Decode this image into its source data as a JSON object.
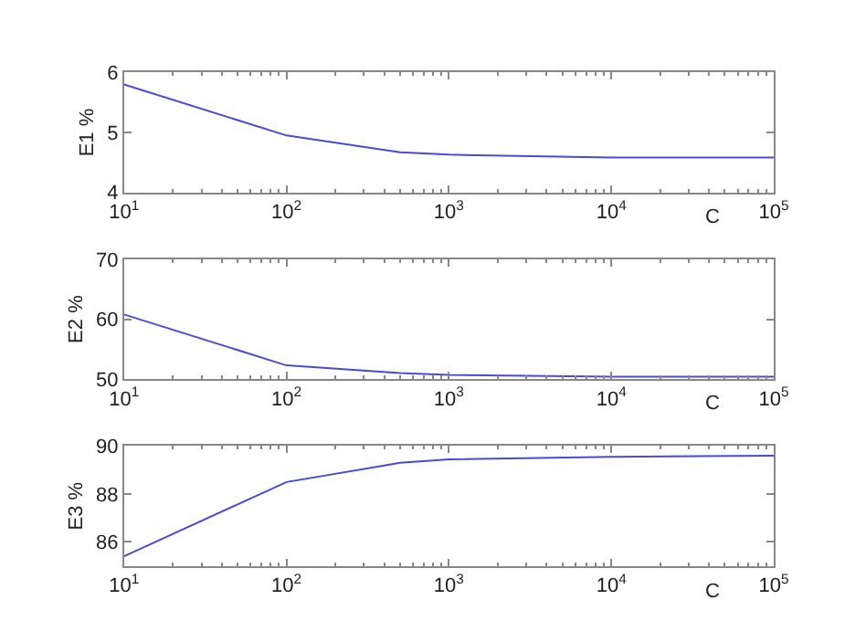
{
  "chart_data": [
    {
      "type": "line",
      "xlabel": "C",
      "ylabel": "E1 %",
      "log": "x",
      "marker": "none",
      "line_style": "solid",
      "x": [
        10,
        100,
        500,
        1000,
        10000,
        100000
      ],
      "series": [
        {
          "color": "#4a4ad8",
          "values": [
            5.8,
            4.95,
            4.67,
            4.63,
            4.58,
            4.58
          ]
        }
      ],
      "xlim": [
        10,
        100000
      ],
      "xticks": [
        {
          "value": 10,
          "label": "10$^{1}$"
        },
        {
          "value": 100,
          "label": "10$^{2}$"
        },
        {
          "value": 1000,
          "label": "10$^{3}$"
        },
        {
          "value": 10000,
          "label": "10$^{4}$"
        },
        {
          "value": 100000,
          "label": "10$^{5}$"
        }
      ],
      "ylim": [
        4,
        6
      ],
      "yticks": [
        4,
        5,
        6
      ]
    },
    {
      "type": "line",
      "xlabel": "C",
      "ylabel": "E2 %",
      "log": "x",
      "marker": "none",
      "line_style": "solid",
      "x": [
        10,
        100,
        500,
        1000,
        10000,
        100000
      ],
      "series": [
        {
          "color": "#4a4ad8",
          "values": [
            60.8,
            52.3,
            51.0,
            50.7,
            50.4,
            50.4
          ]
        }
      ],
      "xlim": [
        10,
        100000
      ],
      "xticks": [
        {
          "value": 10,
          "label": "10$^{1}$"
        },
        {
          "value": 100,
          "label": "10$^{2}$"
        },
        {
          "value": 1000,
          "label": "10$^{3}$"
        },
        {
          "value": 10000,
          "label": "10$^{4}$"
        },
        {
          "value": 100000,
          "label": "10$^{5}$"
        }
      ],
      "ylim": [
        50,
        70
      ],
      "yticks": [
        50,
        60,
        70
      ]
    },
    {
      "type": "line",
      "xlabel": "C",
      "ylabel": "E3 %",
      "log": "x",
      "marker": "none",
      "line_style": "solid",
      "x": [
        10,
        100,
        500,
        1000,
        10000,
        100000
      ],
      "series": [
        {
          "color": "#4a4ad8",
          "values": [
            85.4,
            88.5,
            89.3,
            89.45,
            89.55,
            89.6
          ]
        }
      ],
      "xlim": [
        10,
        100000
      ],
      "xticks": [
        {
          "value": 10,
          "label": "10$^{1}$"
        },
        {
          "value": 100,
          "label": "10$^{2}$"
        },
        {
          "value": 1000,
          "label": "10$^{3}$"
        },
        {
          "value": 10000,
          "label": "10$^{4}$"
        },
        {
          "value": 100000,
          "label": "10$^{5}$"
        }
      ],
      "ylim": [
        85,
        90
      ],
      "yticks": [
        86,
        88,
        90
      ]
    }
  ]
}
